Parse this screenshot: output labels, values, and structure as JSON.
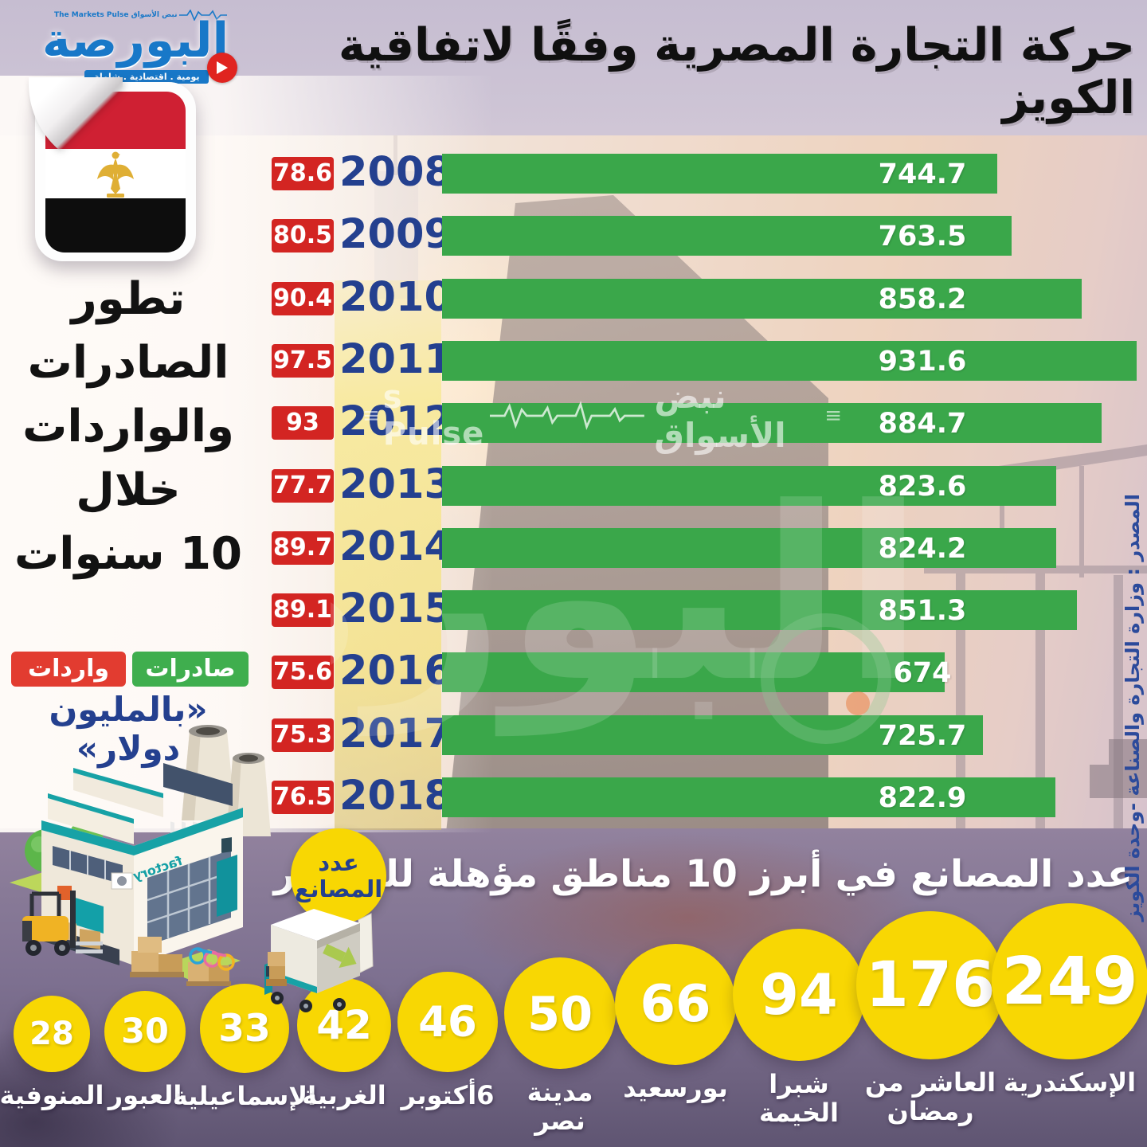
{
  "header": {
    "title": "حركة التجارة المصرية وفقًا لاتفاقية الكويز",
    "logo": {
      "name": "البورصة",
      "top_line": "The Markets Pulse نبض الأسواق",
      "tagline": "يومية . اقتصادية . شاملة"
    }
  },
  "intro": {
    "heading_lines": [
      "تطور",
      "الصادرات",
      "والواردات",
      "خلال",
      "10 سنوات"
    ],
    "legend": [
      {
        "label": "صادرات",
        "color": "#3fae4e"
      },
      {
        "label": "واردات",
        "color": "#e23c30"
      }
    ],
    "unit_note": "«بالمليون دولار»"
  },
  "chart_data": {
    "type": "bar",
    "orientation": "horizontal",
    "title": "تطور الصادرات والواردات خلال 10 سنوات",
    "unit": "مليون دولار",
    "categories": [
      "2008",
      "2009",
      "2010",
      "2011",
      "2012",
      "2013",
      "2014",
      "2015",
      "2016",
      "2017",
      "2018"
    ],
    "series": [
      {
        "name": "صادرات",
        "color": "#3aa74a",
        "values": [
          744.7,
          763.5,
          858.2,
          931.6,
          884.7,
          823.6,
          824.2,
          851.3,
          674,
          725.7,
          822.9
        ]
      },
      {
        "name": "واردات",
        "color": "#d32522",
        "values": [
          78.6,
          80.5,
          90.4,
          97.5,
          93,
          77.7,
          89.7,
          89.1,
          75.6,
          75.3,
          76.5
        ]
      }
    ],
    "xlim": [
      0,
      950
    ],
    "value_labels": true,
    "legend_position": "left"
  },
  "watermark": {
    "latin": "s Pulse",
    "arabic": "نبض الأسواق",
    "ghost": "البورصة"
  },
  "source_note": "المصدر : وزارة التجارة والصناعة -وحدة الكويز",
  "factories": {
    "badge_line1": "عدد",
    "badge_line2": "المصانع",
    "section_title": "عدد المصانع في أبرز 10 مناطق مؤهلة للتصدير",
    "circle_color": "#f8d703",
    "items": [
      {
        "value": "28",
        "label": "المنوفية"
      },
      {
        "value": "30",
        "label": "العبور"
      },
      {
        "value": "33",
        "label": "الإسماعيلية"
      },
      {
        "value": "42",
        "label": "الغربية"
      },
      {
        "value": "46",
        "label": "6أكتوبر"
      },
      {
        "value": "50",
        "label": "مدينة\nنصر"
      },
      {
        "value": "66",
        "label": "بورسعيد"
      },
      {
        "value": "94",
        "label": "شبرا\nالخيمة"
      },
      {
        "value": "176",
        "label": "العاشر من\nرمضان"
      },
      {
        "value": "249",
        "label": "الإسكندرية"
      }
    ]
  }
}
